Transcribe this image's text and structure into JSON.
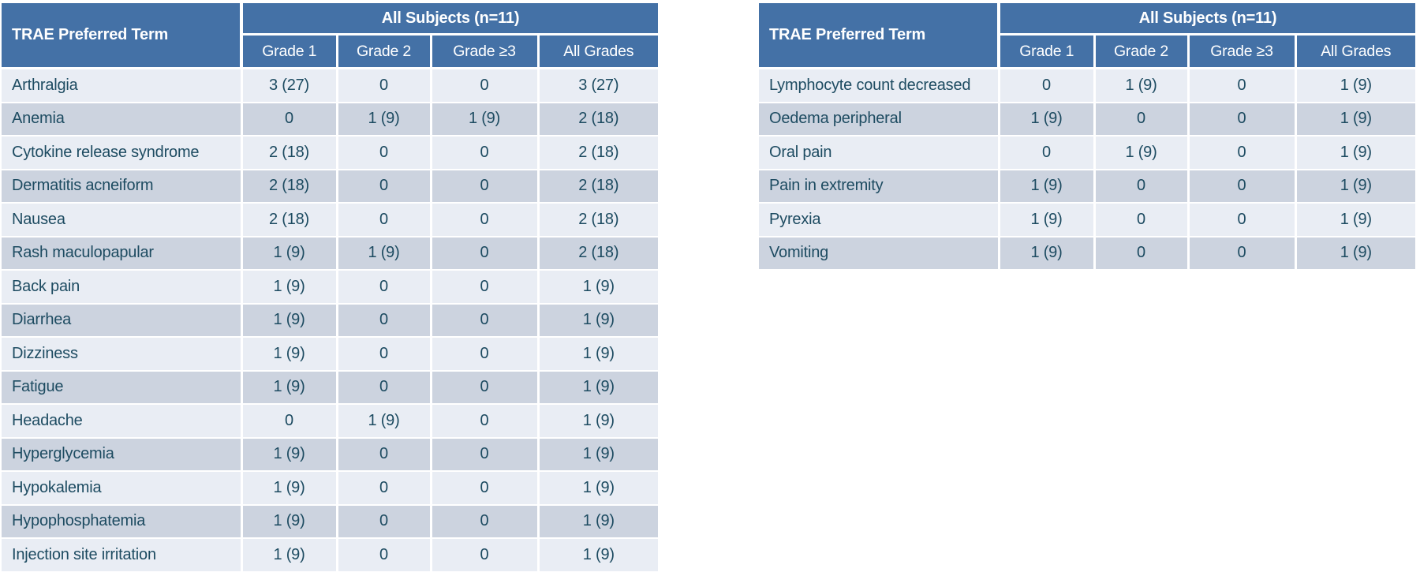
{
  "colors": {
    "page_bg": "#FFFFFF",
    "header_bg": "#4471A6",
    "header_text": "#FFFFFF",
    "row_light": "#E9EDF4",
    "row_dark": "#CCD3DF",
    "body_text": "#1D4B61",
    "divider": "#FFFFFF"
  },
  "tables": [
    {
      "corner_header": "TRAE Preferred Term",
      "group_header": "All Subjects (n=11)",
      "column_headers": [
        "Grade 1",
        "Grade 2",
        "Grade ≥3",
        "All Grades"
      ],
      "rows": [
        {
          "term": "Arthralgia",
          "values": [
            "3 (27)",
            "0",
            "0",
            "3 (27)"
          ]
        },
        {
          "term": "Anemia",
          "values": [
            "0",
            "1 (9)",
            "1 (9)",
            "2 (18)"
          ]
        },
        {
          "term": "Cytokine release syndrome",
          "values": [
            "2 (18)",
            "0",
            "0",
            "2 (18)"
          ]
        },
        {
          "term": "Dermatitis acneiform",
          "values": [
            "2 (18)",
            "0",
            "0",
            "2 (18)"
          ]
        },
        {
          "term": "Nausea",
          "values": [
            "2 (18)",
            "0",
            "0",
            "2 (18)"
          ]
        },
        {
          "term": "Rash maculopapular",
          "values": [
            "1 (9)",
            "1 (9)",
            "0",
            "2 (18)"
          ]
        },
        {
          "term": "Back pain",
          "values": [
            "1 (9)",
            "0",
            "0",
            "1 (9)"
          ]
        },
        {
          "term": "Diarrhea",
          "values": [
            "1 (9)",
            "0",
            "0",
            "1 (9)"
          ]
        },
        {
          "term": "Dizziness",
          "values": [
            "1 (9)",
            "0",
            "0",
            "1 (9)"
          ]
        },
        {
          "term": "Fatigue",
          "values": [
            "1 (9)",
            "0",
            "0",
            "1 (9)"
          ]
        },
        {
          "term": "Headache",
          "values": [
            "0",
            "1 (9)",
            "0",
            "1 (9)"
          ]
        },
        {
          "term": "Hyperglycemia",
          "values": [
            "1 (9)",
            "0",
            "0",
            "1 (9)"
          ]
        },
        {
          "term": "Hypokalemia",
          "values": [
            "1 (9)",
            "0",
            "0",
            "1 (9)"
          ]
        },
        {
          "term": "Hypophosphatemia",
          "values": [
            "1 (9)",
            "0",
            "0",
            "1 (9)"
          ]
        },
        {
          "term": "Injection site irritation",
          "values": [
            "1 (9)",
            "0",
            "0",
            "1 (9)"
          ]
        }
      ]
    },
    {
      "corner_header": "TRAE Preferred Term",
      "group_header": "All Subjects (n=11)",
      "column_headers": [
        "Grade 1",
        "Grade 2",
        "Grade ≥3",
        "All Grades"
      ],
      "rows": [
        {
          "term": "Lymphocyte count decreased",
          "values": [
            "0",
            "1 (9)",
            "0",
            "1 (9)"
          ]
        },
        {
          "term": "Oedema peripheral",
          "values": [
            "1 (9)",
            "0",
            "0",
            "1 (9)"
          ]
        },
        {
          "term": "Oral pain",
          "values": [
            "0",
            "1 (9)",
            "0",
            "1 (9)"
          ]
        },
        {
          "term": "Pain in extremity",
          "values": [
            "1 (9)",
            "0",
            "0",
            "1 (9)"
          ]
        },
        {
          "term": "Pyrexia",
          "values": [
            "1 (9)",
            "0",
            "0",
            "1 (9)"
          ]
        },
        {
          "term": "Vomiting",
          "values": [
            "1 (9)",
            "0",
            "0",
            "1 (9)"
          ]
        }
      ]
    }
  ]
}
